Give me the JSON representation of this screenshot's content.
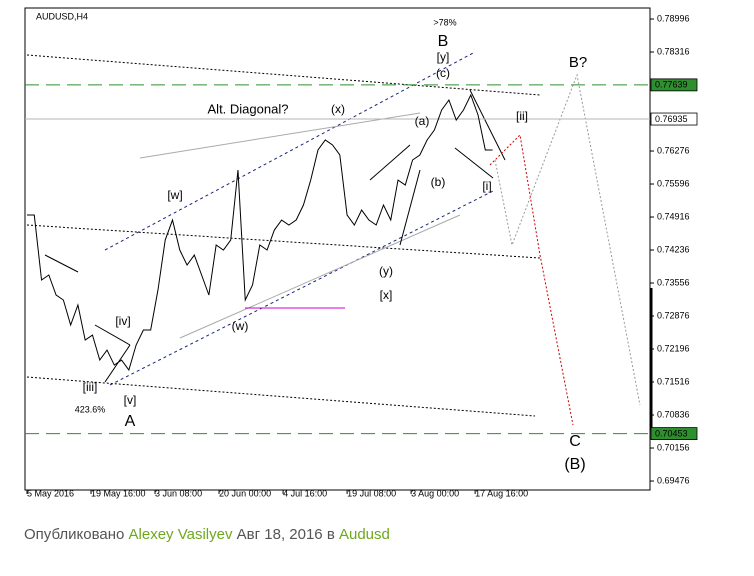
{
  "chart_data": {
    "type": "line",
    "title": "AUDUSD,H4",
    "x": [
      0,
      10,
      20,
      30,
      40,
      50,
      60,
      70,
      80,
      90,
      100,
      110,
      120,
      130,
      140,
      150,
      160,
      170,
      180,
      190,
      200,
      210,
      220,
      230,
      240,
      250,
      260,
      270,
      280,
      290,
      300,
      310,
      320,
      330,
      340,
      350,
      360,
      370,
      380,
      390,
      400,
      410,
      420,
      430,
      440,
      450,
      460,
      470,
      480,
      490,
      500,
      510,
      520,
      530,
      540,
      550,
      560,
      570,
      580,
      590,
      600,
      610,
      620,
      630,
      640
    ],
    "series": [
      {
        "color": "#000000",
        "values": [
          0.74957,
          0.74957,
          0.73618,
          0.73721,
          0.73309,
          0.73206,
          0.72691,
          0.73103,
          0.72381,
          0.72484,
          0.71969,
          0.72175,
          0.71866,
          0.71969,
          0.71763,
          0.72278,
          0.72588,
          0.72588,
          0.73412,
          0.74442,
          0.74854,
          0.74236,
          0.73927,
          0.74133,
          0.73721,
          0.73309,
          0.74339,
          0.74236,
          0.74442,
          0.75884,
          0.73206,
          0.73515,
          0.74339,
          0.74236,
          0.74648,
          0.74854,
          0.74751,
          0.74854,
          0.75163,
          0.75678,
          0.76297,
          0.76503,
          0.764,
          0.76194,
          0.74957,
          0.74751,
          0.7506,
          0.74854,
          0.74751,
          0.75163,
          0.74854,
          0.75678,
          0.75575,
          0.76091,
          0.76194,
          0.76503,
          0.76709,
          0.77121,
          0.77327,
          0.76915,
          0.77121,
          0.7743,
          0.77018,
          0.76297,
          0.76297
        ]
      }
    ],
    "xlim": [
      0,
      855
    ],
    "xticks": [
      {
        "value": 0,
        "label": "5 May 2016"
      },
      {
        "value": 88,
        "label": "19 May 16:00"
      },
      {
        "value": 176,
        "label": "3 Jun 08:00"
      },
      {
        "value": 264,
        "label": "20 Jun 00:00"
      },
      {
        "value": 352,
        "label": "4 Jul 16:00"
      },
      {
        "value": 440,
        "label": "19 Jul 08:00"
      },
      {
        "value": 528,
        "label": "3 Aug 00:00"
      },
      {
        "value": 616,
        "label": "17 Aug 16:00"
      }
    ],
    "ylim": [
      0.69291,
      0.79223
    ],
    "yticks": [
      0.78996,
      0.78316,
      0.76276,
      0.75596,
      0.74916,
      0.74236,
      0.73556,
      0.72876,
      0.72196,
      0.71516,
      0.70836,
      0.70156,
      0.69476
    ],
    "levels": [
      {
        "value": 0.77639,
        "color": "#2f8f2f",
        "style": "dashed"
      },
      {
        "value": 0.76935,
        "color": "#b4b4b4",
        "style": "solid"
      },
      {
        "value": 0.70453,
        "color": "#2f8f2f",
        "style": "dashed"
      }
    ],
    "annotations": [
      {
        "text": ">78%",
        "color": "#1a237e"
      },
      {
        "text": "B",
        "color": "#8b1a1a"
      },
      {
        "text": "[y]",
        "color": "#2e8b2e"
      },
      {
        "text": "(c)",
        "color": "#1a237e"
      },
      {
        "text": "B?",
        "color": "#808080"
      },
      {
        "text": "[ii]",
        "color": "#2e8b2e"
      },
      {
        "text": "Alt. Diagonal?",
        "color": "#9a9a9a"
      },
      {
        "text": "(x)",
        "color": "#1a237e"
      },
      {
        "text": "(a)",
        "color": "#1a237e"
      },
      {
        "text": "[w]",
        "color": "#2e8b2e"
      },
      {
        "text": "(b)",
        "color": "#1a237e"
      },
      {
        "text": "[i]",
        "color": "#2e8b2e"
      },
      {
        "text": "(y)",
        "color": "#1a237e"
      },
      {
        "text": "[x]",
        "color": "#2e8b2e"
      },
      {
        "text": "[iv]",
        "color": "#2e8b2e"
      },
      {
        "text": "(w)",
        "color": "#1a237e"
      },
      {
        "text": "[iii]",
        "color": "#2e8b2e"
      },
      {
        "text": "423.6%",
        "color": "#1a237e"
      },
      {
        "text": "[v]",
        "color": "#2e8b2e"
      },
      {
        "text": "A",
        "color": "#c0141a"
      },
      {
        "text": "C",
        "color": "#8b1a1a"
      },
      {
        "text": "(B)",
        "color": "#1a237e"
      }
    ]
  },
  "footer": {
    "prefix": "Опубликовано",
    "author": "Alexey Vasilyev",
    "date": "Авг 18, 2016",
    "in": "в",
    "idea": "Audusd"
  }
}
